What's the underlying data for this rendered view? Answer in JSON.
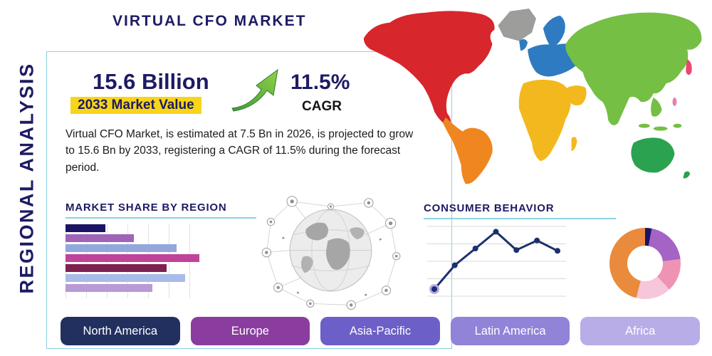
{
  "header": {
    "title": "VIRTUAL CFO MARKET",
    "side_label": "REGIONAL ANALYSIS"
  },
  "summary": {
    "value": "15.6 Billion",
    "value_caption": "2033 Market Value",
    "cagr": "11.5%",
    "cagr_label": "CAGR",
    "description": "Virtual CFO Market, is estimated at 7.5 Bn in 2026, is projected to grow to 15.6 Bn by 2033, registering a CAGR of 11.5% during the forecast period."
  },
  "sections": {
    "market_share_title": "MARKET SHARE BY REGION",
    "consumer_behavior_title": "CONSUMER BEHAVIOR"
  },
  "region_buttons": [
    {
      "label": "North America",
      "color": "#223060"
    },
    {
      "label": "Europe",
      "color": "#8a3d9e"
    },
    {
      "label": "Asia-Pacific",
      "color": "#6c5fc7"
    },
    {
      "label": "Latin America",
      "color": "#9083d8"
    },
    {
      "label": "Africa",
      "color": "#b9ade8"
    }
  ],
  "icons": {
    "growth_arrow": "growth-arrow-icon",
    "globe_network": "globe-network-icon",
    "world_map": "world-map-graphic"
  },
  "colors": {
    "navy": "#1d1b63",
    "accent_teal": "#8ad3e0",
    "highlight_yellow": "#f8d41a",
    "arrow_green_dark": "#3f9a3c",
    "arrow_green_light": "#8fd145",
    "map": {
      "north_america": "#d7262c",
      "greenland": "#9d9d9c",
      "south_america": "#f0861f",
      "europe": "#2e7bc1",
      "africa": "#f3b81d",
      "arabia": "#f3b81d",
      "asia": "#74bf44",
      "australia": "#2ba24f",
      "islands_pink": "#e87fb3",
      "japan_red": "#e8486f"
    }
  },
  "chart_data": [
    {
      "type": "bar",
      "title": "Market Share by Region",
      "orientation": "horizontal",
      "values": [
        28,
        48,
        78,
        94,
        71,
        84,
        61
      ],
      "colors": [
        "#1b1464",
        "#9f63b8",
        "#92a8dc",
        "#c0439b",
        "#7e2150",
        "#a9bce8",
        "#b79ad6"
      ],
      "xlim": [
        0,
        100
      ],
      "grid": true,
      "note": "bars unlabeled in source image; values are relative lengths"
    },
    {
      "type": "line",
      "title": "Consumer Behavior",
      "x": [
        1,
        2,
        3,
        4,
        5,
        6,
        7
      ],
      "values": [
        1.6,
        4.6,
        6.7,
        8.8,
        6.5,
        7.7,
        6.4
      ],
      "ylim": [
        0,
        10
      ],
      "color": "#1c2f6e",
      "start_marker_color": "#b9a7e6",
      "grid": true,
      "note": "axes unlabeled in source image; values are relative heights"
    },
    {
      "type": "pie",
      "donut": true,
      "slices": [
        {
          "value": 3,
          "color": "#1b1464"
        },
        {
          "value": 20,
          "color": "#a563c6"
        },
        {
          "value": 15,
          "color": "#ee93b4"
        },
        {
          "value": 16,
          "color": "#f6c6da"
        },
        {
          "value": 46,
          "color": "#e98a3c"
        }
      ],
      "note": "slices unlabeled in source image; values are relative angles"
    }
  ]
}
